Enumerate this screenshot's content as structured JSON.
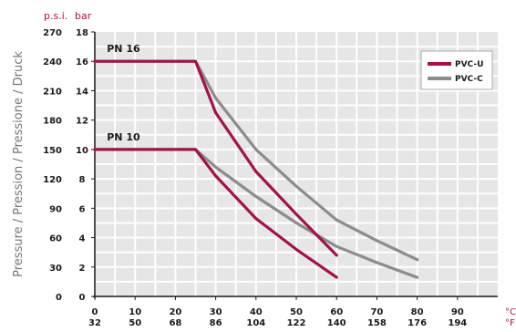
{
  "chart_data": {
    "type": "line",
    "ylabel": "Pressure / Pression / Pressione / Druck",
    "y_units": {
      "left": "p.s.i.",
      "right": "bar"
    },
    "x_units": {
      "top": "°C",
      "bottom": "°F"
    },
    "x_ticks_c": [
      "0",
      "10",
      "20",
      "30",
      "40",
      "50",
      "60",
      "70",
      "80",
      "90"
    ],
    "x_ticks_f": [
      "32",
      "50",
      "68",
      "86",
      "104",
      "122",
      "140",
      "158",
      "176",
      "194"
    ],
    "y_ticks_bar": [
      "0",
      "2",
      "4",
      "6",
      "8",
      "10",
      "12",
      "14",
      "16",
      "18"
    ],
    "y_ticks_psi": [
      "0",
      "30",
      "60",
      "90",
      "120",
      "150",
      "180",
      "210",
      "240",
      "270"
    ],
    "xlim": [
      0,
      100
    ],
    "ylim": [
      0,
      18
    ],
    "grid": true,
    "legend_position": "top-right",
    "annotations": [
      "PN 16",
      "PN 10"
    ],
    "series": [
      {
        "name": "PVC-U",
        "group": "PN 16",
        "x": [
          0,
          25,
          30,
          40,
          50,
          60
        ],
        "y": [
          16,
          16,
          12.5,
          8.5,
          5.6,
          2.8
        ]
      },
      {
        "name": "PVC-C",
        "group": "PN 16",
        "x": [
          0,
          25,
          30,
          40,
          50,
          60,
          70,
          80
        ],
        "y": [
          16,
          16,
          13.5,
          10,
          7.5,
          5.2,
          3.8,
          2.5
        ]
      },
      {
        "name": "PVC-U",
        "group": "PN 10",
        "x": [
          0,
          25,
          30,
          40,
          50,
          60
        ],
        "y": [
          10,
          10,
          8.2,
          5.3,
          3.2,
          1.3
        ]
      },
      {
        "name": "PVC-C",
        "group": "PN 10",
        "x": [
          0,
          25,
          30,
          40,
          50,
          60,
          70,
          80
        ],
        "y": [
          10,
          10,
          8.8,
          6.8,
          5,
          3.4,
          2.3,
          1.3
        ]
      }
    ],
    "colors": {
      "PVC-U": "#a3124a",
      "PVC-C": "#8c8c8c",
      "plot_bg": "#e6e6e6",
      "grid": "#ffffff"
    }
  }
}
